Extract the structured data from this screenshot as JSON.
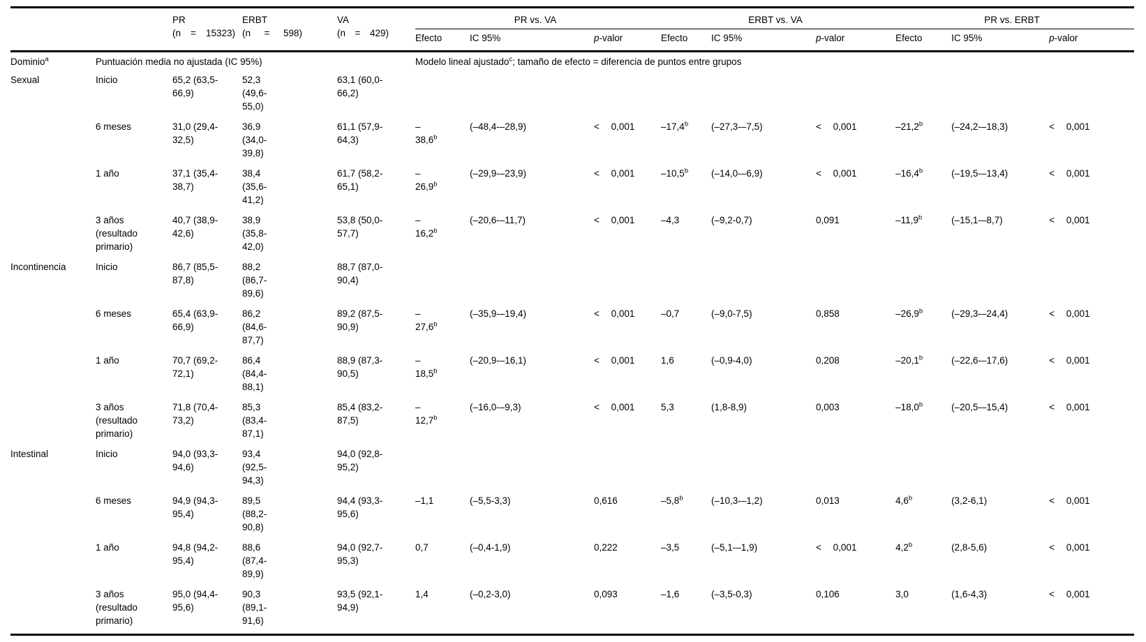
{
  "table": {
    "columns": {
      "groups": [
        {
          "label": "PR",
          "n": "(n = 15323)"
        },
        {
          "label": "ERBT",
          "n": "(n = 598)"
        },
        {
          "label": "VA",
          "n": "(n = 429)"
        }
      ],
      "comparisons": [
        "PR vs. VA",
        "ERBT vs. VA",
        "PR vs. ERBT"
      ],
      "subheaders": [
        "Efecto",
        "IC 95%",
        "p-valor"
      ]
    },
    "band": {
      "domain_label": "Dominio^a",
      "left_caption": "Puntuación media no ajustada (IC 95%)",
      "right_caption": "Modelo lineal ajustado^c; tamaño de efecto = diferencia de puntos entre grupos"
    },
    "rows": [
      {
        "domain": "Sexual",
        "time": "Inicio",
        "pr": "65,2 (63,5-66,9)",
        "erbt": "52,3 (49,6-55,0)",
        "va": "63,1 (60,0-66,2)",
        "cmp": [
          "",
          "",
          "",
          "",
          "",
          "",
          "",
          "",
          ""
        ]
      },
      {
        "domain": "",
        "time": "6 meses",
        "pr": "31,0 (29,4-32,5)",
        "erbt": "36,9 (34,0-39,8)",
        "va": "61,1 (57,9-64,3)",
        "cmp": [
          "–\n38,6^b",
          "(–48,4-–28,9)",
          "< 0,001",
          "–17,4^b",
          "(–27,3-–7,5)",
          "< 0,001",
          "–21,2^b",
          "(–24,2-–18,3)",
          "< 0,001"
        ]
      },
      {
        "domain": "",
        "time": "1 año",
        "pr": "37,1 (35,4-38,7)",
        "erbt": "38,4 (35,6-41,2)",
        "va": "61,7 (58,2-65,1)",
        "cmp": [
          "–\n26,9^b",
          "(–29,9-–23,9)",
          "< 0,001",
          "–10,5^b",
          "(–14,0-–6,9)",
          "< 0,001",
          "–16,4^b",
          "(–19,5-–13,4)",
          "< 0,001"
        ]
      },
      {
        "domain": "",
        "time": "3 años (resultado primario)",
        "pr": "40,7 (38,9-42,6)",
        "erbt": "38,9 (35,8-42,0)",
        "va": "53,8 (50,0-57,7)",
        "cmp": [
          "–\n16,2^b",
          "(–20,6-–11,7)",
          "< 0,001",
          "–4,3",
          "(–9,2-0,7)",
          "0,091",
          "–11,9^b",
          "(–15,1-–8,7)",
          "< 0,001"
        ]
      },
      {
        "domain": "Incontinencia",
        "time": "Inicio",
        "pr": "86,7 (85,5-87,8)",
        "erbt": "88,2 (86,7-89,6)",
        "va": "88,7 (87,0-90,4)",
        "cmp": [
          "",
          "",
          "",
          "",
          "",
          "",
          "",
          "",
          ""
        ]
      },
      {
        "domain": "",
        "time": "6 meses",
        "pr": "65,4 (63,9-66,9)",
        "erbt": "86,2 (84,6-87,7)",
        "va": "89,2 (87,5-90,9)",
        "cmp": [
          "–\n27,6^b",
          "(–35,9-–19,4)",
          "< 0,001",
          "–0,7",
          "(–9,0-7,5)",
          "0,858",
          "–26,9^b",
          "(–29,3-–24,4)",
          "< 0,001"
        ]
      },
      {
        "domain": "",
        "time": "1 año",
        "pr": "70,7 (69,2-72,1)",
        "erbt": "86,4 (84,4-88,1)",
        "va": "88,9 (87,3-90,5)",
        "cmp": [
          "–\n18,5^b",
          "(–20,9-–16,1)",
          "< 0,001",
          "1,6",
          "(–0,9-4,0)",
          "0,208",
          "–20,1^b",
          "(–22,6-–17,6)",
          "< 0,001"
        ]
      },
      {
        "domain": "",
        "time": "3 años (resultado primario)",
        "pr": "71,8 (70,4-73,2)",
        "erbt": "85,3 (83,4-87,1)",
        "va": "85,4 (83,2-87,5)",
        "cmp": [
          "–\n12,7^b",
          "(–16,0-–9,3)",
          "< 0,001",
          "5,3",
          "(1,8-8,9)",
          "0,003",
          "–18,0^b",
          "(–20,5-–15,4)",
          "< 0,001"
        ]
      },
      {
        "domain": "Intestinal",
        "time": "Inicio",
        "pr": "94,0 (93,3-94,6)",
        "erbt": "93,4 (92,5-94,3)",
        "va": "94,0 (92,8-95,2)",
        "cmp": [
          "",
          "",
          "",
          "",
          "",
          "",
          "",
          "",
          ""
        ]
      },
      {
        "domain": "",
        "time": "6 meses",
        "pr": "94,9 (94,3-95,4)",
        "erbt": "89,5 (88,2-90,8)",
        "va": "94,4 (93,3-95,6)",
        "cmp": [
          "–1,1",
          "(–5,5-3,3)",
          "0,616",
          "–5,8^b",
          "(–10,3-–1,2)",
          "0,013",
          "4,6^b",
          "(3,2-6,1)",
          "< 0,001"
        ]
      },
      {
        "domain": "",
        "time": "1 año",
        "pr": "94,8 (94,2-95,4)",
        "erbt": "88,6 (87,4-89,9)",
        "va": "94,0 (92,7-95,3)",
        "cmp": [
          "0,7",
          "(–0,4-1,9)",
          "0,222",
          "–3,5",
          "(–5,1-–1,9)",
          "< 0,001",
          "4,2^b",
          "(2,8-5,6)",
          "< 0,001"
        ]
      },
      {
        "domain": "",
        "time": "3 años (resultado primario)",
        "pr": "95,0 (94,4-95,6)",
        "erbt": "90,3 (89,1-91,6)",
        "va": "93,5 (92,1-94,9)",
        "cmp": [
          "1,4",
          "(–0,2-3,0)",
          "0,093",
          "–1,6",
          "(–3,5-0,3)",
          "0,106",
          "3,0",
          "(1,6-4,3)",
          "< 0,001"
        ]
      }
    ]
  }
}
